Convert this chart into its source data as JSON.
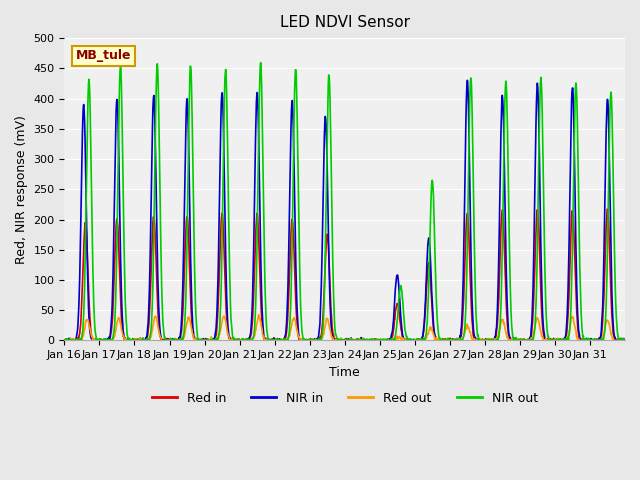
{
  "title": "LED NDVI Sensor",
  "xlabel": "Time",
  "ylabel": "Red, NIR response (mV)",
  "ylim": [
    0,
    500
  ],
  "background_color": "#e8e8e8",
  "plot_bg_color": "#f0f0f0",
  "legend_label": "MB_tule",
  "legend_entries": [
    "Red in",
    "NIR in",
    "Red out",
    "NIR out"
  ],
  "line_colors": [
    "#dd0000",
    "#0000cc",
    "#ff9900",
    "#00cc00"
  ],
  "line_width": 1.2,
  "tick_labels": [
    "Jan 16",
    "Jan 17",
    "Jan 18",
    "Jan 19",
    "Jan 20",
    "Jan 21",
    "Jan 22",
    "Jan 23",
    "Jan 24",
    "Jan 25",
    "Jan 26",
    "Jan 27",
    "Jan 28",
    "Jan 29",
    "Jan 30",
    "Jan 31"
  ],
  "yticks": [
    0,
    50,
    100,
    150,
    200,
    250,
    300,
    350,
    400,
    450,
    500
  ]
}
